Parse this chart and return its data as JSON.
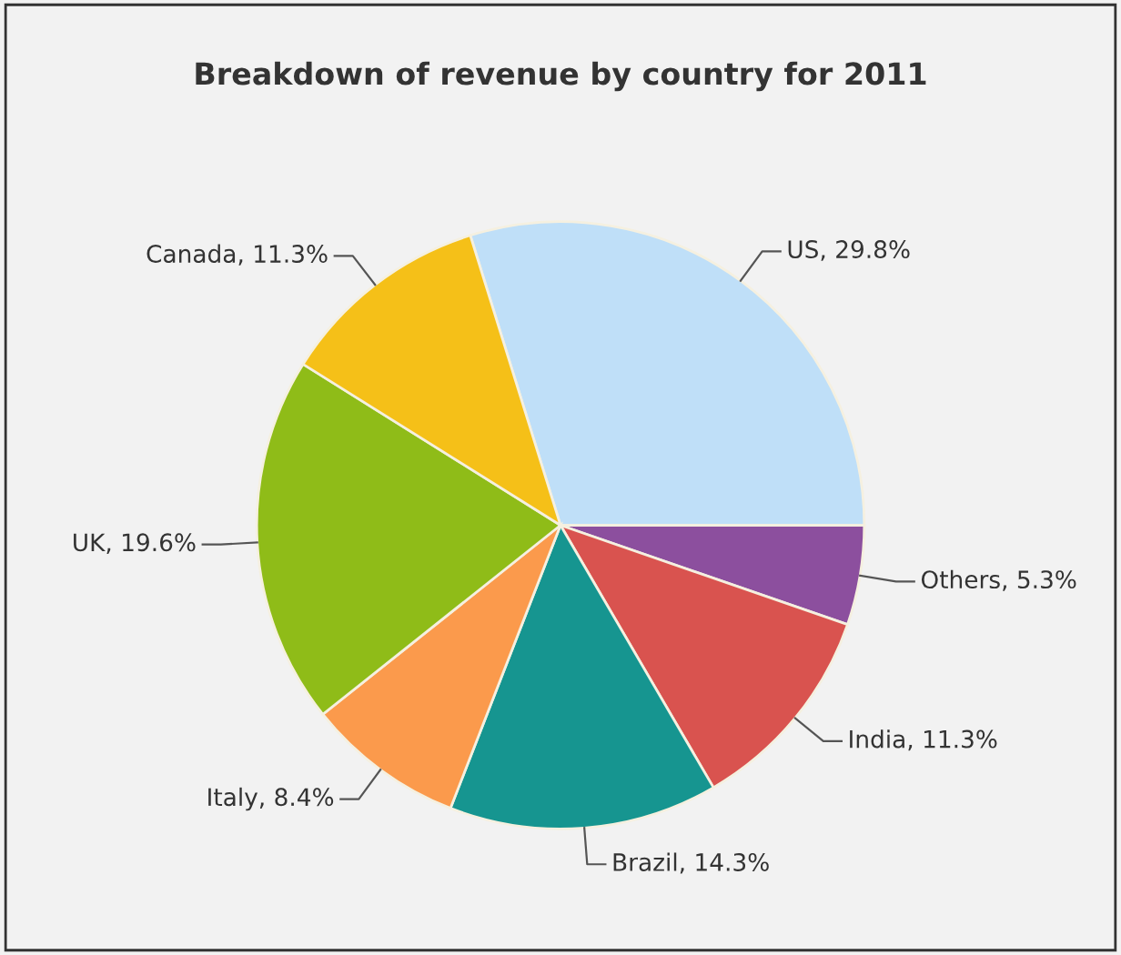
{
  "chart_data": {
    "type": "pie",
    "title": "Breakdown of revenue by country for 2011",
    "categories": [
      "US",
      "Others",
      "India",
      "Brazil",
      "Italy",
      "UK",
      "Canada"
    ],
    "values": [
      29.8,
      5.3,
      11.3,
      14.3,
      8.4,
      19.6,
      11.3
    ],
    "value_labels": [
      "29.8%",
      "5.3%",
      "11.3%",
      "14.3%",
      "8.4%",
      "19.6%",
      "11.3%"
    ],
    "colors": [
      "#bfdff8",
      "#8c4f9e",
      "#d9534f",
      "#169590",
      "#fb9a4c",
      "#8fbc18",
      "#f5c018"
    ],
    "legend": false
  }
}
